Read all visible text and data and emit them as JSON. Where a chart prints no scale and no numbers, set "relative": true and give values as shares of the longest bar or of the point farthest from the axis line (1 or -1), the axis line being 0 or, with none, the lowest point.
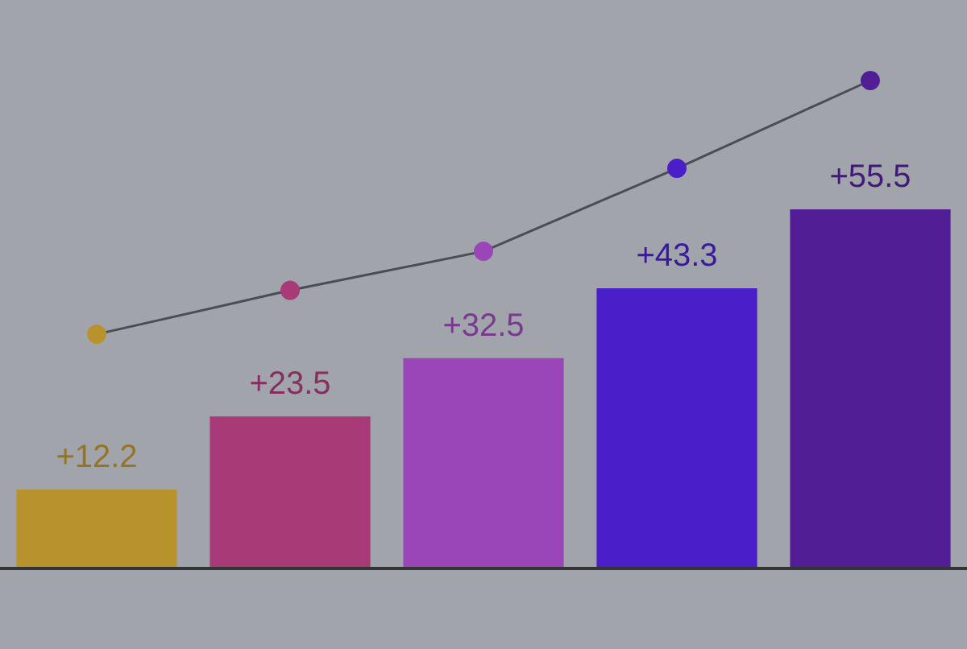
{
  "chart_data": [
    {
      "type": "bar",
      "categories": [
        null,
        null,
        null,
        null,
        null
      ],
      "series": [
        {
          "colors": [
            "#b8922c",
            "#a83a78",
            "#9a46b8",
            "#4a1ec8",
            "#521e96"
          ],
          "values": [
            12.2,
            23.5,
            32.5,
            43.3,
            55.5
          ],
          "value_labels": [
            "+12.2",
            "+23.5",
            "+32.5",
            "+43.3",
            "+55.5"
          ]
        }
      ]
    },
    {
      "type": "line",
      "relative": true,
      "categories": [
        null,
        null,
        null,
        null,
        null
      ],
      "series": [
        {
          "color": "#4a4c58",
          "colors": [
            "#b8922c",
            "#a83a78",
            "#9a46b8",
            "#4a1ec8",
            "#521e96"
          ],
          "values": [
            0.48,
            0.57,
            0.65,
            0.82,
            1
          ]
        }
      ],
      "marker": "circle",
      "line_style": "solid"
    }
  ]
}
